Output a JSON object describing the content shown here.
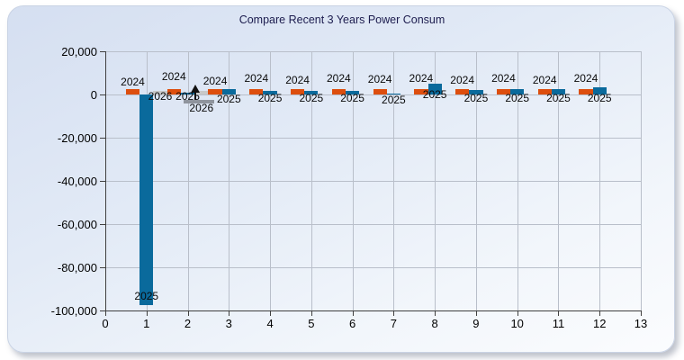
{
  "panel": {
    "background_top": "#d5dff1",
    "background_bottom": "#fbfcfe"
  },
  "cursor": {
    "icon": "up-arrow-cursor",
    "near_month": 2
  },
  "chart_data": {
    "type": "bar",
    "title": "Compare Recent 3 Years Power Consum",
    "xlabel": "",
    "ylabel": "",
    "xlim": [
      0,
      13
    ],
    "ylim": [
      -100000,
      20000
    ],
    "grid": true,
    "legend_position": "none",
    "x_tick_labels": [
      "0",
      "1",
      "2",
      "3",
      "4",
      "5",
      "6",
      "7",
      "8",
      "9",
      "10",
      "11",
      "12",
      "13"
    ],
    "x_tick_values": [
      0,
      1,
      2,
      3,
      4,
      5,
      6,
      7,
      8,
      9,
      10,
      11,
      12,
      13
    ],
    "y_tick_labels": [
      "20,000",
      "0",
      "-20,000",
      "-40,000",
      "-60,000",
      "-80,000",
      "-100,000"
    ],
    "y_tick_values": [
      20000,
      0,
      -20000,
      -40000,
      -60000,
      -80000,
      -100000
    ],
    "categories": [
      1,
      2,
      3,
      4,
      5,
      6,
      7,
      8,
      9,
      10,
      11,
      12
    ],
    "bar_point_labels": "each bar is labeled with its series year",
    "series": [
      {
        "name": "2024",
        "color": "#dd4e0e",
        "values": [
          2400,
          2400,
          2400,
          2400,
          2400,
          2400,
          2400,
          2400,
          2400,
          2400,
          2400,
          2400
        ]
      },
      {
        "name": "2025",
        "color": "#0a6a9c",
        "values": [
          -97500,
          800,
          2400,
          1500,
          1500,
          1700,
          300,
          4900,
          2100,
          2500,
          2400,
          3300
        ]
      },
      {
        "name": "2026",
        "color": "#c8c8c8",
        "values": [
          1500,
          1500,
          null,
          null,
          null,
          null,
          null,
          null,
          null,
          null,
          null,
          null
        ]
      }
    ]
  }
}
